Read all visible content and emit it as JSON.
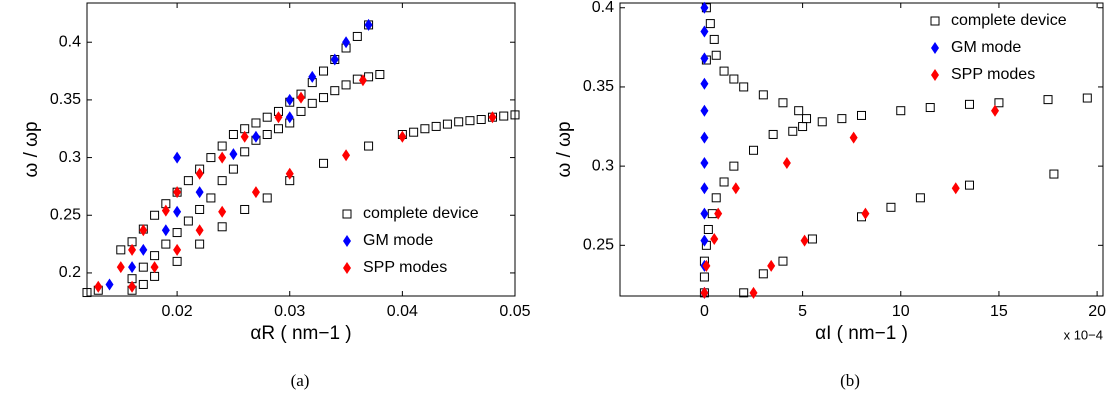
{
  "chart_data": [
    {
      "type": "scatter",
      "xlabel": "αR ( nm−1 )",
      "ylabel": "ω / ωp",
      "caption": "(a)",
      "legend": "lower right",
      "xlim": [
        0.012,
        0.05
      ],
      "ylim": [
        0.18,
        0.434
      ],
      "xticks": [
        0.02,
        0.03,
        0.04,
        0.05
      ],
      "yticks": [
        0.2,
        0.25,
        0.3,
        0.35,
        0.4
      ],
      "series": [
        {
          "name": "complete device",
          "marker": "square",
          "color": "#000000",
          "x": [
            0.015,
            0.016,
            0.017,
            0.018,
            0.019,
            0.02,
            0.021,
            0.022,
            0.023,
            0.024,
            0.025,
            0.026,
            0.027,
            0.028,
            0.029,
            0.03,
            0.031,
            0.032,
            0.033,
            0.034,
            0.035,
            0.036,
            0.037,
            0.016,
            0.017,
            0.018,
            0.019,
            0.02,
            0.021,
            0.022,
            0.023,
            0.024,
            0.025,
            0.026,
            0.027,
            0.028,
            0.029,
            0.03,
            0.031,
            0.032,
            0.033,
            0.034,
            0.035,
            0.036,
            0.037,
            0.038,
            0.012,
            0.013,
            0.016,
            0.017,
            0.018,
            0.02,
            0.022,
            0.024,
            0.026,
            0.028,
            0.03,
            0.033,
            0.037,
            0.04,
            0.041,
            0.042,
            0.043,
            0.044,
            0.045,
            0.046,
            0.047,
            0.048,
            0.049,
            0.05
          ],
          "values": [
            0.22,
            0.227,
            0.238,
            0.25,
            0.26,
            0.27,
            0.28,
            0.29,
            0.3,
            0.31,
            0.32,
            0.325,
            0.33,
            0.335,
            0.34,
            0.348,
            0.355,
            0.365,
            0.375,
            0.385,
            0.395,
            0.405,
            0.415,
            0.195,
            0.205,
            0.215,
            0.225,
            0.235,
            0.245,
            0.255,
            0.265,
            0.28,
            0.29,
            0.305,
            0.315,
            0.32,
            0.325,
            0.33,
            0.34,
            0.347,
            0.352,
            0.358,
            0.363,
            0.368,
            0.37,
            0.372,
            0.183,
            0.185,
            0.185,
            0.19,
            0.197,
            0.21,
            0.225,
            0.24,
            0.255,
            0.265,
            0.28,
            0.295,
            0.31,
            0.32,
            0.322,
            0.325,
            0.327,
            0.329,
            0.331,
            0.332,
            0.333,
            0.335,
            0.336,
            0.337
          ]
        },
        {
          "name": "GM mode",
          "marker": "diamond",
          "color": "#0000ff",
          "x": [
            0.014,
            0.016,
            0.017,
            0.019,
            0.02,
            0.022,
            0.02,
            0.025,
            0.027,
            0.03,
            0.03,
            0.032,
            0.034,
            0.035,
            0.037
          ],
          "values": [
            0.19,
            0.205,
            0.22,
            0.237,
            0.253,
            0.27,
            0.3,
            0.303,
            0.318,
            0.335,
            0.35,
            0.37,
            0.385,
            0.4,
            0.415
          ]
        },
        {
          "name": "SPP modes",
          "marker": "diamond",
          "color": "#ff0000",
          "x": [
            0.013,
            0.015,
            0.016,
            0.017,
            0.019,
            0.02,
            0.022,
            0.024,
            0.026,
            0.029,
            0.031,
            0.0365,
            0.016,
            0.018,
            0.02,
            0.022,
            0.024,
            0.027,
            0.03,
            0.035,
            0.04,
            0.048
          ],
          "values": [
            0.188,
            0.205,
            0.22,
            0.237,
            0.254,
            0.27,
            0.286,
            0.3,
            0.318,
            0.335,
            0.352,
            0.367,
            0.188,
            0.205,
            0.22,
            0.237,
            0.253,
            0.27,
            0.286,
            0.302,
            0.318,
            0.335
          ]
        }
      ]
    },
    {
      "type": "scatter",
      "xlabel": "αI ( nm−1 )",
      "ylabel": "ω / ωp",
      "caption": "(b)",
      "legend": "upper right",
      "multiplier": "x 10−4",
      "xlim": [
        -4.3,
        20.3
      ],
      "ylim": [
        0.218,
        0.403
      ],
      "xticks": [
        0,
        5,
        10,
        15,
        20
      ],
      "yticks": [
        0.25,
        0.3,
        0.35,
        0.4
      ],
      "series": [
        {
          "name": "complete device",
          "marker": "square",
          "color": "#000000",
          "x": [
            0.1,
            0.3,
            0.5,
            0.6,
            0.1,
            1,
            1.5,
            2,
            3,
            4,
            4.8,
            5.2,
            5,
            4.5,
            3.5,
            2.5,
            1.5,
            1,
            0.6,
            0.4,
            0.2,
            0.1,
            0,
            0,
            0,
            6,
            7,
            8,
            10,
            11.5,
            13.5,
            15,
            17.5,
            19.5,
            2,
            3,
            4,
            5.5,
            8,
            9.5,
            11,
            13.5,
            17.8
          ],
          "values": [
            0.4,
            0.39,
            0.38,
            0.37,
            0.367,
            0.36,
            0.355,
            0.35,
            0.345,
            0.34,
            0.335,
            0.33,
            0.325,
            0.322,
            0.32,
            0.31,
            0.3,
            0.29,
            0.28,
            0.27,
            0.26,
            0.25,
            0.24,
            0.23,
            0.22,
            0.328,
            0.33,
            0.332,
            0.335,
            0.337,
            0.339,
            0.34,
            0.342,
            0.343,
            0.22,
            0.232,
            0.24,
            0.254,
            0.268,
            0.274,
            0.28,
            0.288,
            0.295
          ]
        },
        {
          "name": "GM mode",
          "marker": "diamond",
          "color": "#0000ff",
          "x": [
            0,
            0,
            0,
            0,
            0,
            0,
            0,
            0,
            0,
            0,
            0,
            0
          ],
          "values": [
            0.4,
            0.385,
            0.368,
            0.352,
            0.335,
            0.318,
            0.302,
            0.286,
            0.27,
            0.253,
            0.237,
            0.22
          ]
        },
        {
          "name": "SPP modes",
          "marker": "diamond",
          "color": "#ff0000",
          "x": [
            0.7,
            0.5,
            0.1,
            0,
            1.6,
            4.2,
            7.6,
            14.8,
            2.5,
            3.4,
            5.1,
            8.2,
            12.8
          ],
          "values": [
            0.27,
            0.254,
            0.237,
            0.22,
            0.286,
            0.302,
            0.318,
            0.335,
            0.22,
            0.237,
            0.253,
            0.27,
            0.286
          ]
        }
      ]
    }
  ]
}
